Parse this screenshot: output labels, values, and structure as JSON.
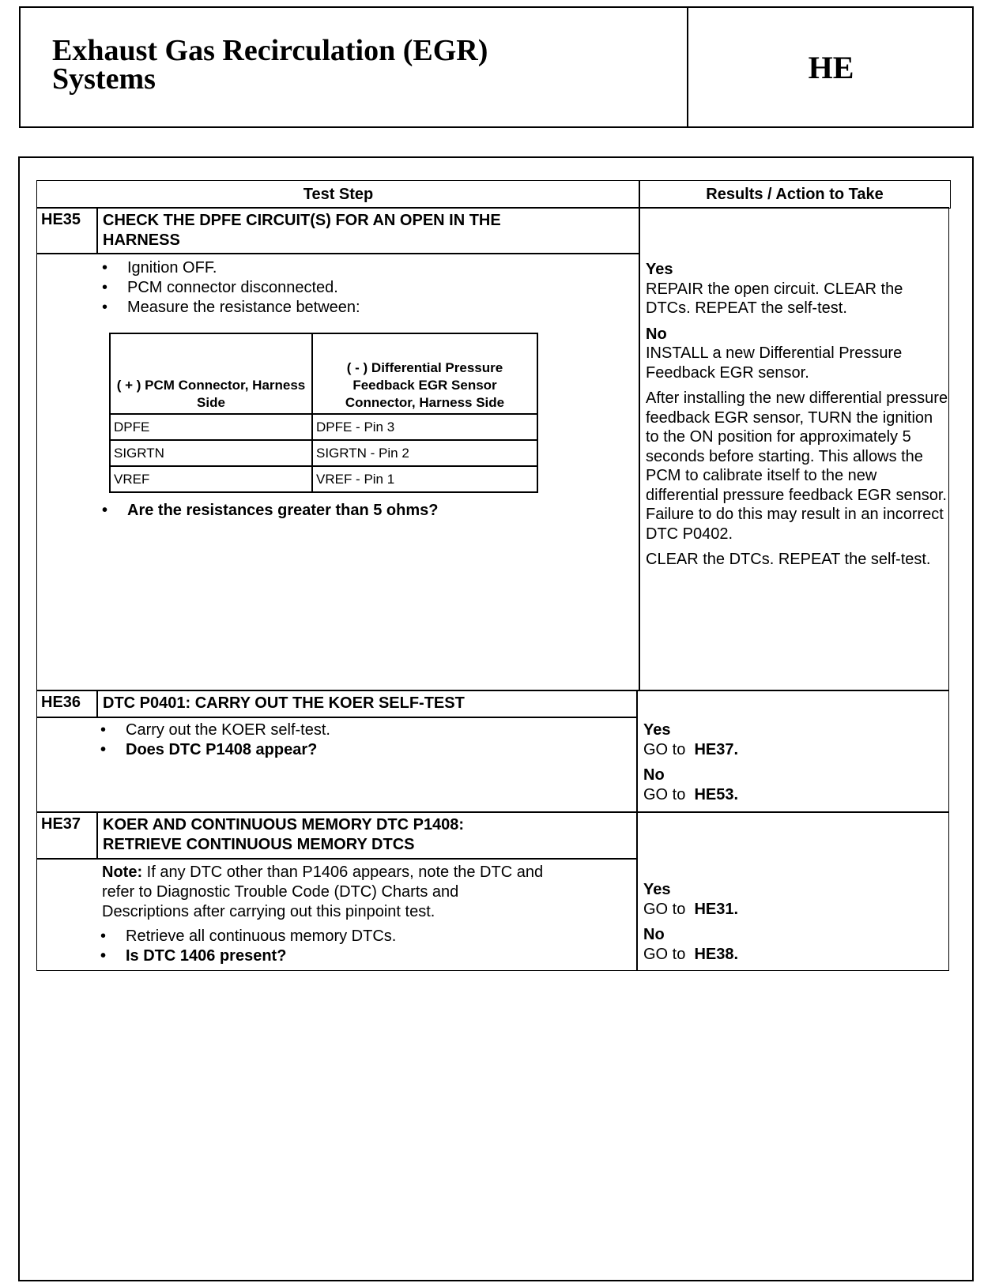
{
  "header": {
    "title_line1": "Exhaust Gas Recirculation (EGR)",
    "title_line2": "Systems",
    "section_code": "HE"
  },
  "table": {
    "col_test_step": "Test Step",
    "col_results": "Results / Action to Take",
    "steps": [
      {
        "id": "HE35",
        "title_line1": "CHECK THE DPFE CIRCUIT(S) FOR AN OPEN IN THE",
        "title_line2": "HARNESS",
        "bullets": [
          "Ignition OFF.",
          "PCM connector disconnected.",
          "Measure the resistance between:"
        ],
        "question": "Are the resistances greater than 5 ohms?",
        "pin_table": {
          "headers": [
            "( + ) PCM Connector, Harness Side",
            "( - ) Differential Pressure Feedback EGR Sensor Connector, Harness Side"
          ],
          "rows": [
            [
              "DPFE",
              "DPFE - Pin 3"
            ],
            [
              "SIGRTN",
              "SIGRTN - Pin 2"
            ],
            [
              "VREF",
              "VREF - Pin 1"
            ]
          ]
        },
        "yes_label": "Yes",
        "yes_text": "REPAIR the open circuit. CLEAR the DTCs. REPEAT the self-test.",
        "no_label": "No",
        "no_text": "INSTALL a new Differential Pressure Feedback EGR sensor.",
        "no_extra1": "After installing the new differential pressure feedback EGR sensor, TURN the ignition to the ON position for approximately 5 seconds before starting. This allows the PCM to calibrate itself to the new differential pressure feedback EGR sensor. Failure to do this may result in an incorrect DTC P0402.",
        "no_extra2": "CLEAR the DTCs. REPEAT the self-test."
      },
      {
        "id": "HE36",
        "title": "DTC P0401: CARRY OUT THE KOER SELF-TEST",
        "bullet": "Carry out the KOER self-test.",
        "question": "Does DTC P1408 appear?",
        "yes_label": "Yes",
        "yes_go": "GO to",
        "yes_target": "HE37.",
        "no_label": "No",
        "no_go": "GO to",
        "no_target": "HE53."
      },
      {
        "id": "HE37",
        "title_line1": "KOER AND CONTINUOUS MEMORY DTC P1408:",
        "title_line2": "RETRIEVE CONTINUOUS MEMORY DTCS",
        "note_label": "Note:",
        "note_text": "If any DTC other than P1406 appears, note the DTC and refer to Diagnostic Trouble Code (DTC) Charts and Descriptions after carrying out this pinpoint test.",
        "bullet": "Retrieve all continuous memory DTCs.",
        "question": "Is DTC 1406 present?",
        "yes_label": "Yes",
        "yes_go": "GO to",
        "yes_target": "HE31.",
        "no_label": "No",
        "no_go": "GO to",
        "no_target": "HE38."
      }
    ]
  }
}
